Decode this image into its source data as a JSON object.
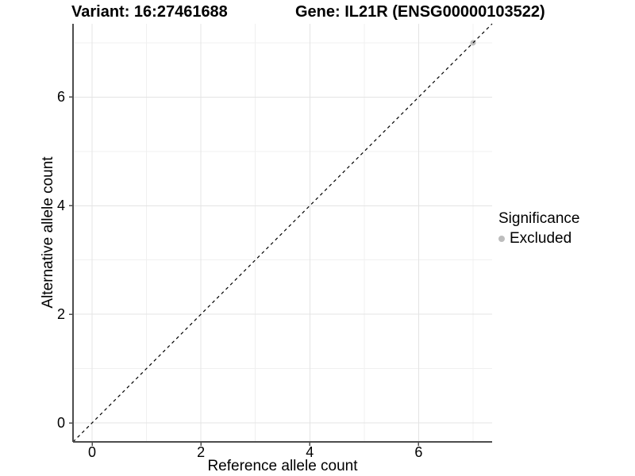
{
  "chart_data": {
    "type": "scatter",
    "titles": [
      "Variant: 16:27461688",
      "Gene: IL21R (ENSG00000103522)"
    ],
    "xlabel": "Reference allele count",
    "ylabel": "Alternative allele count",
    "xlim": [
      -0.35,
      7.35
    ],
    "ylim": [
      -0.35,
      7.35
    ],
    "xticks": [
      0,
      2,
      4,
      6
    ],
    "yticks": [
      0,
      2,
      4,
      6
    ],
    "x_minor_gridlines": [
      1,
      3,
      5,
      7
    ],
    "y_minor_gridlines": [
      1,
      3,
      5,
      7
    ],
    "grid": "on",
    "reference_line": {
      "kind": "identity y=x",
      "style": "dashed",
      "color": "#000000"
    },
    "series": [
      {
        "name": "Excluded",
        "marker": "circle",
        "color": "#bdbdbd",
        "points": [
          {
            "x": 7,
            "y": 7
          }
        ]
      }
    ],
    "legend": {
      "title": "Significance",
      "position": "right",
      "entries": [
        {
          "label": "Excluded",
          "color": "#bdbdbd",
          "marker": "circle"
        }
      ]
    },
    "colors": {
      "background": "#ffffff",
      "axis_line": "#4d4d4d",
      "grid_major": "#e4e4e4",
      "grid_minor": "#f0f0f0",
      "text": "#000000"
    }
  }
}
